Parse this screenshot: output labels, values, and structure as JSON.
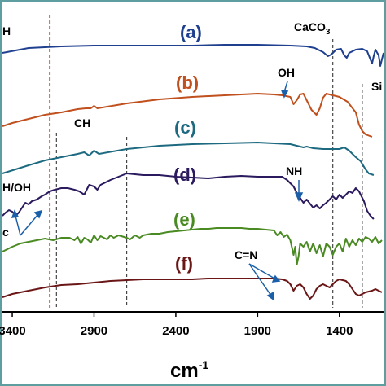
{
  "chart_data": {
    "type": "line",
    "xlabel": "cm",
    "xlabel_sup": "-1",
    "ylabel": "",
    "x_reversed": true,
    "xlim": [
      3460,
      1130
    ],
    "x_ticks": [
      {
        "value": 3400,
        "label": "3400"
      },
      {
        "value": 2900,
        "label": "2900"
      },
      {
        "value": 2400,
        "label": "2400"
      },
      {
        "value": 1900,
        "label": "1900"
      },
      {
        "value": 1400,
        "label": "1400"
      }
    ],
    "colors": {
      "a": "#1f3f8f",
      "b": "#c0501d",
      "c": "#1d6a80",
      "d": "#2b1a5e",
      "e": "#4a8a22",
      "f": "#6a1616",
      "frame": "#5f9ea0",
      "red_dash": "#c00000"
    },
    "series": [
      {
        "name": "(a)",
        "base_y": 53,
        "points": [
          [
            3460,
            62
          ],
          [
            3300,
            56
          ],
          [
            3100,
            54
          ],
          [
            2900,
            53
          ],
          [
            2700,
            53
          ],
          [
            2500,
            53
          ],
          [
            2300,
            53
          ],
          [
            2100,
            52
          ],
          [
            1900,
            52
          ],
          [
            1700,
            53
          ],
          [
            1600,
            54
          ],
          [
            1550,
            56
          ],
          [
            1500,
            61
          ],
          [
            1470,
            66
          ],
          [
            1450,
            64
          ],
          [
            1420,
            58
          ],
          [
            1390,
            57
          ],
          [
            1370,
            65
          ],
          [
            1355,
            68
          ],
          [
            1340,
            62
          ],
          [
            1300,
            58
          ],
          [
            1260,
            57
          ],
          [
            1230,
            60
          ],
          [
            1210,
            70
          ],
          [
            1200,
            75
          ],
          [
            1190,
            66
          ],
          [
            1180,
            58
          ],
          [
            1160,
            65
          ],
          [
            1150,
            78
          ],
          [
            1140,
            70
          ],
          [
            1130,
            62
          ]
        ]
      },
      {
        "name": "(b)",
        "base_y": 98,
        "points": [
          [
            3460,
            152
          ],
          [
            3400,
            148
          ],
          [
            3300,
            143
          ],
          [
            3200,
            138
          ],
          [
            3100,
            135
          ],
          [
            3000,
            131
          ],
          [
            2950,
            130
          ],
          [
            2920,
            130
          ],
          [
            2900,
            127
          ],
          [
            2880,
            130
          ],
          [
            2700,
            124
          ],
          [
            2500,
            119
          ],
          [
            2300,
            116
          ],
          [
            2100,
            114
          ],
          [
            1900,
            112
          ],
          [
            1800,
            113
          ],
          [
            1750,
            114
          ],
          [
            1700,
            116
          ],
          [
            1680,
            125
          ],
          [
            1660,
            120
          ],
          [
            1640,
            113
          ],
          [
            1620,
            112
          ],
          [
            1600,
            120
          ],
          [
            1570,
            132
          ],
          [
            1540,
            138
          ],
          [
            1520,
            130
          ],
          [
            1500,
            117
          ],
          [
            1480,
            112
          ],
          [
            1440,
            114
          ],
          [
            1400,
            116
          ],
          [
            1350,
            122
          ],
          [
            1300,
            135
          ],
          [
            1280,
            150
          ],
          [
            1260,
            158
          ],
          [
            1240,
            162
          ],
          [
            1200,
            165
          ]
        ]
      },
      {
        "name": "(c)",
        "base_y": 155,
        "points": [
          [
            3460,
            210
          ],
          [
            3300,
            200
          ],
          [
            3200,
            194
          ],
          [
            3100,
            190
          ],
          [
            3000,
            186
          ],
          [
            2960,
            184
          ],
          [
            2930,
            188
          ],
          [
            2900,
            182
          ],
          [
            2870,
            186
          ],
          [
            2700,
            180
          ],
          [
            2500,
            176
          ],
          [
            2300,
            174
          ],
          [
            2100,
            173
          ],
          [
            1900,
            172
          ],
          [
            1800,
            173
          ],
          [
            1700,
            174
          ],
          [
            1660,
            176
          ],
          [
            1620,
            178
          ],
          [
            1600,
            177
          ],
          [
            1560,
            179
          ],
          [
            1500,
            180
          ],
          [
            1450,
            180
          ],
          [
            1400,
            180
          ],
          [
            1370,
            178
          ],
          [
            1340,
            182
          ],
          [
            1300,
            190
          ],
          [
            1270,
            195
          ],
          [
            1240,
            205
          ],
          [
            1220,
            210
          ],
          [
            1190,
            212
          ]
        ]
      },
      {
        "name": "(d)",
        "base_y": 212,
        "points": [
          [
            3460,
            262
          ],
          [
            3440,
            258
          ],
          [
            3420,
            255
          ],
          [
            3400,
            257
          ],
          [
            3380,
            262
          ],
          [
            3360,
            258
          ],
          [
            3340,
            252
          ],
          [
            3320,
            246
          ],
          [
            3300,
            248
          ],
          [
            3280,
            244
          ],
          [
            3250,
            242
          ],
          [
            3220,
            238
          ],
          [
            3200,
            236
          ],
          [
            3170,
            232
          ],
          [
            3140,
            230
          ],
          [
            3100,
            228
          ],
          [
            3060,
            228
          ],
          [
            3020,
            230
          ],
          [
            2990,
            232
          ],
          [
            2960,
            236
          ],
          [
            2930,
            224
          ],
          [
            2900,
            226
          ],
          [
            2880,
            230
          ],
          [
            2860,
            224
          ],
          [
            2800,
            218
          ],
          [
            2750,
            214
          ],
          [
            2700,
            210
          ],
          [
            2600,
            212
          ],
          [
            2500,
            212
          ],
          [
            2400,
            214
          ],
          [
            2300,
            215
          ],
          [
            2200,
            216
          ],
          [
            2100,
            214
          ],
          [
            2000,
            213
          ],
          [
            1900,
            214
          ],
          [
            1800,
            214
          ],
          [
            1750,
            214
          ],
          [
            1720,
            218
          ],
          [
            1700,
            222
          ],
          [
            1680,
            226
          ],
          [
            1660,
            234
          ],
          [
            1640,
            240
          ],
          [
            1620,
            246
          ],
          [
            1600,
            242
          ],
          [
            1580,
            247
          ],
          [
            1560,
            252
          ],
          [
            1540,
            249
          ],
          [
            1520,
            253
          ],
          [
            1500,
            249
          ],
          [
            1480,
            246
          ],
          [
            1460,
            242
          ],
          [
            1440,
            238
          ],
          [
            1420,
            242
          ],
          [
            1400,
            236
          ],
          [
            1380,
            240
          ],
          [
            1360,
            236
          ],
          [
            1340,
            232
          ],
          [
            1320,
            234
          ],
          [
            1300,
            228
          ],
          [
            1280,
            232
          ],
          [
            1250,
            244
          ],
          [
            1230,
            256
          ],
          [
            1210,
            262
          ],
          [
            1190,
            266
          ]
        ]
      },
      {
        "name": "(e)",
        "base_y": 268,
        "points": [
          [
            3460,
            306
          ],
          [
            3400,
            300
          ],
          [
            3350,
            296
          ],
          [
            3300,
            294
          ],
          [
            3250,
            292
          ],
          [
            3200,
            290
          ],
          [
            3150,
            292
          ],
          [
            3100,
            289
          ],
          [
            3050,
            289
          ],
          [
            3020,
            292
          ],
          [
            3000,
            288
          ],
          [
            2980,
            296
          ],
          [
            2960,
            289
          ],
          [
            2940,
            291
          ],
          [
            2920,
            295
          ],
          [
            2900,
            286
          ],
          [
            2880,
            292
          ],
          [
            2860,
            287
          ],
          [
            2820,
            291
          ],
          [
            2800,
            286
          ],
          [
            2780,
            289
          ],
          [
            2750,
            286
          ],
          [
            2700,
            289
          ],
          [
            2680,
            291
          ],
          [
            2650,
            286
          ],
          [
            2620,
            289
          ],
          [
            2600,
            286
          ],
          [
            2550,
            284
          ],
          [
            2500,
            284
          ],
          [
            2450,
            282
          ],
          [
            2400,
            281
          ],
          [
            2350,
            280
          ],
          [
            2300,
            279
          ],
          [
            2250,
            278
          ],
          [
            2200,
            278
          ],
          [
            2150,
            277
          ],
          [
            2100,
            277
          ],
          [
            2050,
            277
          ],
          [
            2000,
            277
          ],
          [
            1950,
            278
          ],
          [
            1900,
            278
          ],
          [
            1850,
            279
          ],
          [
            1800,
            280
          ],
          [
            1780,
            286
          ],
          [
            1760,
            282
          ],
          [
            1740,
            288
          ],
          [
            1720,
            285
          ],
          [
            1700,
            292
          ],
          [
            1680,
            310
          ],
          [
            1670,
            300
          ],
          [
            1660,
            322
          ],
          [
            1650,
            312
          ],
          [
            1640,
            296
          ],
          [
            1620,
            300
          ],
          [
            1600,
            294
          ],
          [
            1580,
            306
          ],
          [
            1560,
            296
          ],
          [
            1540,
            308
          ],
          [
            1520,
            298
          ],
          [
            1500,
            312
          ],
          [
            1480,
            296
          ],
          [
            1460,
            300
          ],
          [
            1440,
            310
          ],
          [
            1420,
            300
          ],
          [
            1400,
            296
          ],
          [
            1380,
            306
          ],
          [
            1360,
            290
          ],
          [
            1340,
            300
          ],
          [
            1320,
            292
          ],
          [
            1300,
            298
          ],
          [
            1280,
            290
          ],
          [
            1260,
            294
          ],
          [
            1240,
            288
          ],
          [
            1220,
            290
          ],
          [
            1200,
            294
          ],
          [
            1180,
            288
          ],
          [
            1160,
            296
          ],
          [
            1140,
            292
          ]
        ]
      },
      {
        "name": "(f)",
        "base_y": 320,
        "points": [
          [
            3460,
            362
          ],
          [
            3400,
            358
          ],
          [
            3300,
            354
          ],
          [
            3200,
            350
          ],
          [
            3100,
            347
          ],
          [
            3000,
            346
          ],
          [
            2900,
            344
          ],
          [
            2800,
            342
          ],
          [
            2700,
            341
          ],
          [
            2600,
            340
          ],
          [
            2500,
            340
          ],
          [
            2400,
            340
          ],
          [
            2300,
            340
          ],
          [
            2200,
            339
          ],
          [
            2100,
            339
          ],
          [
            2000,
            339
          ],
          [
            1900,
            339
          ],
          [
            1850,
            339
          ],
          [
            1800,
            339
          ],
          [
            1750,
            340
          ],
          [
            1720,
            342
          ],
          [
            1700,
            346
          ],
          [
            1690,
            350
          ],
          [
            1680,
            354
          ],
          [
            1660,
            348
          ],
          [
            1640,
            346
          ],
          [
            1620,
            350
          ],
          [
            1600,
            358
          ],
          [
            1580,
            364
          ],
          [
            1560,
            360
          ],
          [
            1540,
            352
          ],
          [
            1520,
            348
          ],
          [
            1500,
            346
          ],
          [
            1480,
            348
          ],
          [
            1460,
            350
          ],
          [
            1440,
            346
          ],
          [
            1420,
            342
          ],
          [
            1400,
            340
          ],
          [
            1380,
            341
          ],
          [
            1360,
            342
          ],
          [
            1340,
            346
          ],
          [
            1320,
            352
          ],
          [
            1300,
            358
          ],
          [
            1280,
            360
          ],
          [
            1260,
            358
          ],
          [
            1240,
            356
          ],
          [
            1220,
            355
          ],
          [
            1200,
            354
          ],
          [
            1180,
            352
          ],
          [
            1160,
            354
          ],
          [
            1140,
            356
          ]
        ]
      }
    ],
    "vertical_lines": [
      {
        "x": 3170,
        "color": "red",
        "top": 15,
        "bottom": 375
      },
      {
        "x": 3130,
        "color": "black",
        "top": 160,
        "bottom": 375
      },
      {
        "x": 2700,
        "color": "black",
        "top": 165,
        "bottom": 375
      },
      {
        "x": 1440,
        "color": "black",
        "top": 45,
        "bottom": 375
      },
      {
        "x": 1260,
        "color": "black",
        "top": 100,
        "bottom": 375
      }
    ],
    "annotations": {
      "oh_top": "H",
      "caco3_main": "CaCO",
      "caco3_sub": "3",
      "oh": "OH",
      "si": "Si",
      "ch": "CH",
      "nh": "NH",
      "nh_oh": "H/OH",
      "c_small": "c",
      "cn": "C=N"
    }
  }
}
